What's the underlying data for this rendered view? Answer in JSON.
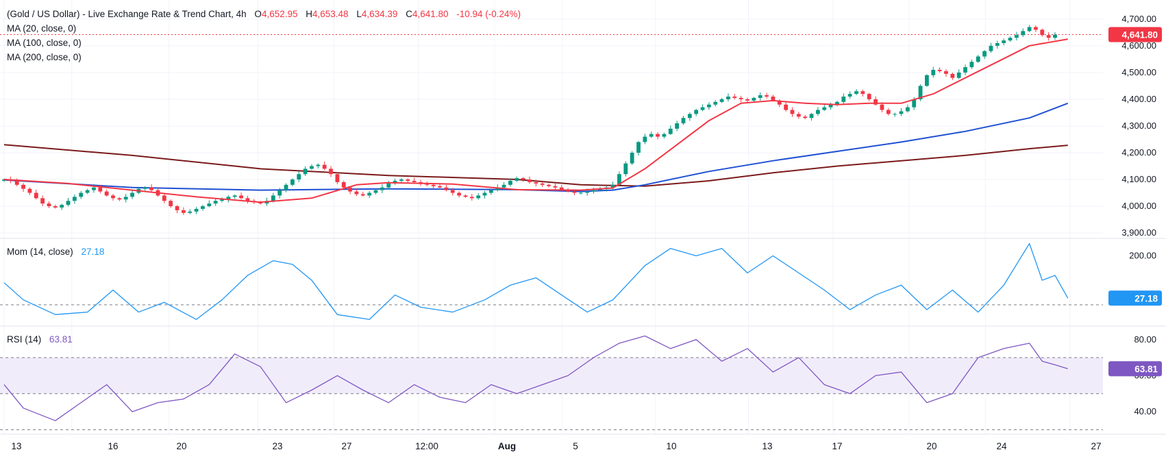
{
  "header": {
    "symbol": "(Gold / US Dollar) - Live Exchange Rate & Trend Chart, 4h",
    "o_label": "O",
    "o_value": "4,652.95",
    "h_label": "H",
    "h_value": "4,653.48",
    "l_label": "L",
    "l_value": "4,634.39",
    "c_label": "C",
    "c_value": "4,641.80",
    "change": "-10.94 (-0.24%)"
  },
  "legends": {
    "ma20": "MA (20, close, 0)",
    "ma100": "MA (100, close, 0)",
    "ma200": "MA (200, close, 0)",
    "mom": "Mom (14, close)",
    "mom_value": "27.18",
    "rsi": "RSI (14)",
    "rsi_value": "63.81"
  },
  "colors": {
    "up": "#089981",
    "down": "#f23645",
    "ma20": "#f23645",
    "ma100": "#1e50d2",
    "ma200": "#7b1a1a",
    "mom": "#2196f3",
    "rsi": "#7e57c2",
    "rsi_band": "#f1ecfa",
    "grid": "#f0f3fa",
    "axis_text": "#131722"
  },
  "chart_data": [
    {
      "type": "candlestick",
      "title": "(Gold / US Dollar) - Live Exchange Rate & Trend Chart, 4h",
      "x_tick_labels": [
        "13",
        "16",
        "20",
        "23",
        "27",
        "12:00",
        "Aug",
        "5",
        "10",
        "13",
        "17",
        "20",
        "24",
        "27"
      ],
      "y_ticks": [
        3900,
        4000,
        4100,
        4200,
        4300,
        4400,
        4500,
        4600,
        4700
      ],
      "y_tick_labels": [
        "3,900.00",
        "4,000.00",
        "4,100.00",
        "4,200.00",
        "4,300.00",
        "4,400.00",
        "4,500.00",
        "4,600.00",
        "4,700.00"
      ],
      "ylim": [
        3890,
        4720
      ],
      "last_price": 4641.8,
      "last_price_label": "4,641.80",
      "close": [
        4100,
        4095,
        4080,
        4065,
        4050,
        4030,
        4010,
        4000,
        3995,
        4005,
        4020,
        4035,
        4050,
        4060,
        4070,
        4055,
        4040,
        4030,
        4025,
        4035,
        4050,
        4065,
        4070,
        4060,
        4040,
        4020,
        4000,
        3985,
        3975,
        3980,
        3990,
        4000,
        4010,
        4020,
        4025,
        4035,
        4040,
        4030,
        4020,
        4015,
        4010,
        4020,
        4040,
        4060,
        4080,
        4100,
        4120,
        4140,
        4150,
        4155,
        4140,
        4120,
        4090,
        4070,
        4055,
        4045,
        4040,
        4050,
        4060,
        4070,
        4085,
        4095,
        4100,
        4095,
        4090,
        4085,
        4080,
        4075,
        4070,
        4060,
        4050,
        4040,
        4035,
        4030,
        4040,
        4050,
        4060,
        4070,
        4080,
        4095,
        4105,
        4100,
        4090,
        4085,
        4080,
        4075,
        4070,
        4060,
        4055,
        4050,
        4050,
        4055,
        4060,
        4065,
        4070,
        4080,
        4120,
        4160,
        4200,
        4240,
        4260,
        4270,
        4260,
        4270,
        4290,
        4310,
        4330,
        4345,
        4360,
        4370,
        4380,
        4390,
        4400,
        4410,
        4405,
        4400,
        4395,
        4405,
        4415,
        4410,
        4395,
        4380,
        4360,
        4345,
        4335,
        4330,
        4345,
        4360,
        4370,
        4380,
        4390,
        4410,
        4420,
        4430,
        4420,
        4400,
        4380,
        4360,
        4345,
        4345,
        4355,
        4370,
        4400,
        4450,
        4490,
        4510,
        4505,
        4495,
        4480,
        4500,
        4520,
        4540,
        4560,
        4580,
        4600,
        4610,
        4620,
        4630,
        4640,
        4655,
        4670,
        4660,
        4640,
        4630,
        4641.8
      ],
      "series": [
        {
          "name": "MA (20, close, 0)",
          "ylim": [
            3890,
            4720
          ],
          "values": [
            [
              0,
              4100
            ],
            [
              10,
              4085
            ],
            [
              20,
              4060
            ],
            [
              30,
              4035
            ],
            [
              40,
              4015
            ],
            [
              48,
              4030
            ],
            [
              55,
              4080
            ],
            [
              60,
              4088
            ],
            [
              70,
              4083
            ],
            [
              80,
              4062
            ],
            [
              90,
              4060
            ],
            [
              95,
              4068
            ],
            [
              100,
              4140
            ],
            [
              105,
              4230
            ],
            [
              110,
              4320
            ],
            [
              115,
              4385
            ],
            [
              120,
              4395
            ],
            [
              125,
              4385
            ],
            [
              130,
              4380
            ],
            [
              135,
              4385
            ],
            [
              140,
              4385
            ],
            [
              145,
              4420
            ],
            [
              150,
              4480
            ],
            [
              155,
              4540
            ],
            [
              160,
              4600
            ],
            [
              166,
              4625
            ]
          ]
        },
        {
          "name": "MA (100, close, 0)",
          "ylim": [
            3890,
            4720
          ],
          "values": [
            [
              0,
              4098
            ],
            [
              20,
              4070
            ],
            [
              40,
              4060
            ],
            [
              60,
              4065
            ],
            [
              80,
              4062
            ],
            [
              90,
              4055
            ],
            [
              95,
              4060
            ],
            [
              100,
              4080
            ],
            [
              110,
              4130
            ],
            [
              120,
              4170
            ],
            [
              130,
              4205
            ],
            [
              140,
              4240
            ],
            [
              150,
              4280
            ],
            [
              160,
              4330
            ],
            [
              166,
              4385
            ]
          ]
        },
        {
          "name": "MA (200, close, 0)",
          "ylim": [
            3890,
            4720
          ],
          "values": [
            [
              0,
              4230
            ],
            [
              20,
              4190
            ],
            [
              40,
              4140
            ],
            [
              60,
              4115
            ],
            [
              80,
              4100
            ],
            [
              90,
              4080
            ],
            [
              100,
              4075
            ],
            [
              110,
              4095
            ],
            [
              120,
              4125
            ],
            [
              130,
              4150
            ],
            [
              140,
              4170
            ],
            [
              150,
              4190
            ],
            [
              160,
              4215
            ],
            [
              166,
              4228
            ]
          ]
        },
        {
          "name": "Mom (14, close)",
          "last_value": 27.18,
          "last_value_label": "27.18",
          "y_ticks": [
            200
          ],
          "y_tick_labels": [
            "200.00"
          ],
          "ylim": [
            -70,
            260
          ],
          "dashed_level": 0,
          "values": [
            [
              0,
              90
            ],
            [
              3,
              20
            ],
            [
              8,
              -40
            ],
            [
              13,
              -30
            ],
            [
              17,
              60
            ],
            [
              21,
              -30
            ],
            [
              25,
              10
            ],
            [
              30,
              -60
            ],
            [
              34,
              20
            ],
            [
              38,
              120
            ],
            [
              42,
              180
            ],
            [
              45,
              165
            ],
            [
              48,
              100
            ],
            [
              52,
              -40
            ],
            [
              57,
              -60
            ],
            [
              61,
              40
            ],
            [
              65,
              -10
            ],
            [
              70,
              -30
            ],
            [
              75,
              20
            ],
            [
              79,
              80
            ],
            [
              83,
              110
            ],
            [
              87,
              40
            ],
            [
              91,
              -30
            ],
            [
              95,
              20
            ],
            [
              100,
              160
            ],
            [
              104,
              230
            ],
            [
              108,
              200
            ],
            [
              112,
              230
            ],
            [
              116,
              130
            ],
            [
              120,
              200
            ],
            [
              124,
              130
            ],
            [
              128,
              60
            ],
            [
              132,
              -20
            ],
            [
              136,
              40
            ],
            [
              140,
              80
            ],
            [
              144,
              -20
            ],
            [
              148,
              60
            ],
            [
              152,
              -30
            ],
            [
              156,
              80
            ],
            [
              160,
              250
            ],
            [
              162,
              100
            ],
            [
              164,
              120
            ],
            [
              166,
              27.18
            ]
          ]
        },
        {
          "name": "RSI (14)",
          "last_value": 63.81,
          "last_value_label": "63.81",
          "y_ticks": [
            40,
            60,
            80
          ],
          "y_tick_labels": [
            "40.00",
            "60.00",
            "80.00"
          ],
          "ylim": [
            29,
            86
          ],
          "band": [
            50,
            70
          ],
          "dashed_levels": [
            30,
            50,
            70
          ],
          "values": [
            [
              0,
              55
            ],
            [
              3,
              42
            ],
            [
              8,
              35
            ],
            [
              12,
              45
            ],
            [
              16,
              55
            ],
            [
              20,
              40
            ],
            [
              24,
              45
            ],
            [
              28,
              47
            ],
            [
              32,
              55
            ],
            [
              36,
              72
            ],
            [
              40,
              65
            ],
            [
              44,
              45
            ],
            [
              48,
              52
            ],
            [
              52,
              60
            ],
            [
              56,
              52
            ],
            [
              60,
              45
            ],
            [
              64,
              55
            ],
            [
              68,
              48
            ],
            [
              72,
              45
            ],
            [
              76,
              55
            ],
            [
              80,
              50
            ],
            [
              84,
              55
            ],
            [
              88,
              60
            ],
            [
              92,
              70
            ],
            [
              96,
              78
            ],
            [
              100,
              82
            ],
            [
              104,
              75
            ],
            [
              108,
              80
            ],
            [
              112,
              68
            ],
            [
              116,
              75
            ],
            [
              120,
              62
            ],
            [
              124,
              70
            ],
            [
              128,
              55
            ],
            [
              132,
              50
            ],
            [
              136,
              60
            ],
            [
              140,
              62
            ],
            [
              144,
              45
            ],
            [
              148,
              50
            ],
            [
              152,
              70
            ],
            [
              156,
              75
            ],
            [
              160,
              78
            ],
            [
              162,
              68
            ],
            [
              164,
              66
            ],
            [
              166,
              63.81
            ]
          ]
        }
      ]
    }
  ]
}
